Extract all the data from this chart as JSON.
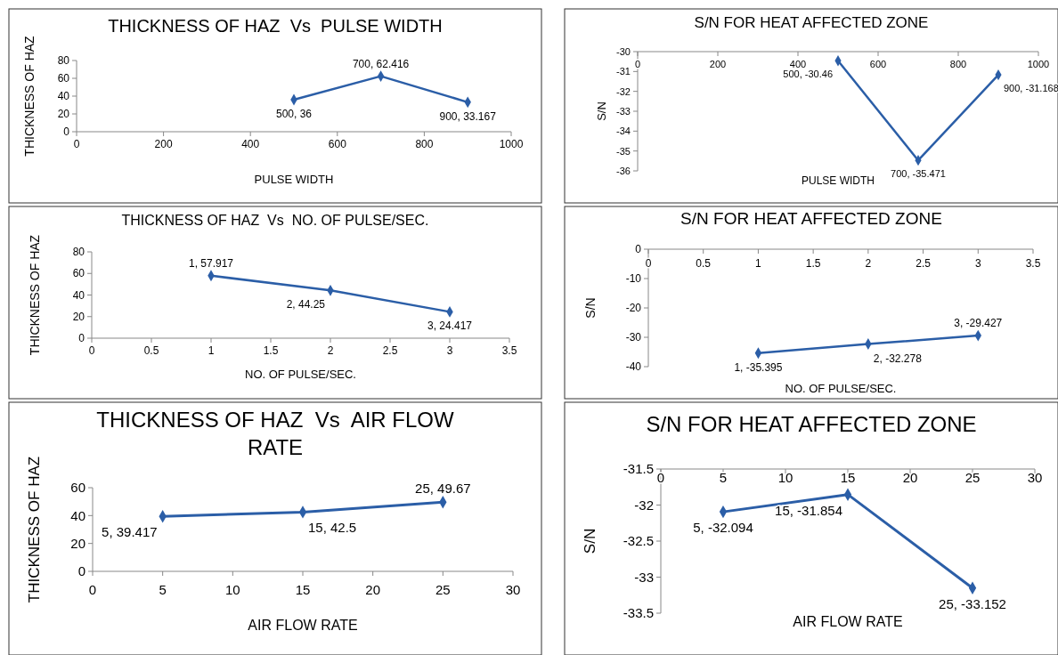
{
  "chart_data": [
    {
      "type": "line",
      "title": "THICKNESS OF HAZ  Vs  PULSE WIDTH",
      "xlabel": "PULSE WIDTH",
      "ylabel": "THICKNESS OF HAZ",
      "x": [
        500,
        700,
        900
      ],
      "series": [
        {
          "color": "#2b5ea7",
          "values": [
            36,
            62.416,
            33.167
          ],
          "value_labels": [
            "500, 36",
            "700, 62.416",
            "900, 33.167"
          ]
        }
      ],
      "xlim": [
        0,
        1000
      ],
      "xticks": [
        0,
        200,
        400,
        600,
        800,
        1000
      ],
      "ylim": [
        0,
        80
      ],
      "yticks": [
        0,
        20,
        40,
        60,
        80
      ],
      "marker": "diamond"
    },
    {
      "type": "line",
      "title": "S/N FOR HEAT AFFECTED ZONE",
      "xlabel": "PULSE WIDTH",
      "ylabel": "S/N",
      "x": [
        500,
        700,
        900
      ],
      "series": [
        {
          "color": "#2b5ea7",
          "values": [
            -30.46,
            -35.471,
            -31.168
          ],
          "value_labels": [
            "500, -30.46",
            "700, -35.471",
            "900, -31.168"
          ]
        }
      ],
      "xlim": [
        0,
        1000
      ],
      "xticks": [
        0,
        200,
        400,
        600,
        800,
        1000
      ],
      "ylim": [
        -36,
        -30
      ],
      "yticks": [
        -36,
        -35,
        -34,
        -33,
        -32,
        -31,
        -30
      ],
      "marker": "diamond"
    },
    {
      "type": "line",
      "title": "THICKNESS OF HAZ  Vs  NO. OF PULSE/SEC.",
      "xlabel": "NO. OF PULSE/SEC.",
      "ylabel": "THICKNESS OF HAZ",
      "x": [
        1,
        2,
        3
      ],
      "series": [
        {
          "color": "#2b5ea7",
          "values": [
            57.917,
            44.25,
            24.417
          ],
          "value_labels": [
            "1, 57.917",
            "2, 44.25",
            "3, 24.417"
          ]
        }
      ],
      "xlim": [
        0,
        3.5
      ],
      "xticks": [
        0,
        0.5,
        1,
        1.5,
        2,
        2.5,
        3,
        3.5
      ],
      "ylim": [
        0,
        80
      ],
      "yticks": [
        0,
        20,
        40,
        60,
        80
      ],
      "marker": "diamond"
    },
    {
      "type": "line",
      "title": "S/N FOR HEAT AFFECTED ZONE",
      "xlabel": "NO. OF PULSE/SEC.",
      "ylabel": "S/N",
      "x": [
        1,
        2,
        3
      ],
      "series": [
        {
          "color": "#2b5ea7",
          "values": [
            -35.395,
            -32.278,
            -29.427
          ],
          "value_labels": [
            "1, -35.395",
            "2, -32.278",
            "3, -29.427"
          ]
        }
      ],
      "xlim": [
        0,
        3.5
      ],
      "xticks": [
        0,
        0.5,
        1,
        1.5,
        2,
        2.5,
        3,
        3.5
      ],
      "ylim": [
        -40,
        0
      ],
      "yticks": [
        -40,
        -30,
        -20,
        -10,
        0
      ],
      "marker": "diamond"
    },
    {
      "type": "line",
      "title": "THICKNESS OF HAZ  Vs  AIR FLOW RATE",
      "xlabel": "AIR FLOW RATE",
      "ylabel": "THICKNESS OF HAZ",
      "x": [
        5,
        15,
        25
      ],
      "series": [
        {
          "color": "#2b5ea7",
          "values": [
            39.417,
            42.5,
            49.67
          ],
          "value_labels": [
            "5, 39.417",
            "15, 42.5",
            "25, 49.67"
          ]
        }
      ],
      "xlim": [
        0,
        30
      ],
      "xticks": [
        0,
        5,
        10,
        15,
        20,
        25,
        30
      ],
      "ylim": [
        0,
        60
      ],
      "yticks": [
        0,
        20,
        40,
        60
      ],
      "marker": "diamond"
    },
    {
      "type": "line",
      "title": "S/N FOR HEAT AFFECTED ZONE",
      "xlabel": "AIR FLOW RATE",
      "ylabel": "S/N",
      "x": [
        5,
        15,
        25
      ],
      "series": [
        {
          "color": "#2b5ea7",
          "values": [
            -32.094,
            -31.854,
            -33.152
          ],
          "value_labels": [
            "5, -32.094",
            "15, -31.854",
            "25, -33.152"
          ]
        }
      ],
      "xlim": [
        0,
        30
      ],
      "xticks": [
        0,
        5,
        10,
        15,
        20,
        25,
        30
      ],
      "ylim": [
        -33.5,
        -31.5
      ],
      "yticks": [
        -33.5,
        -33,
        -32.5,
        -32,
        -31.5
      ],
      "marker": "diamond"
    }
  ]
}
